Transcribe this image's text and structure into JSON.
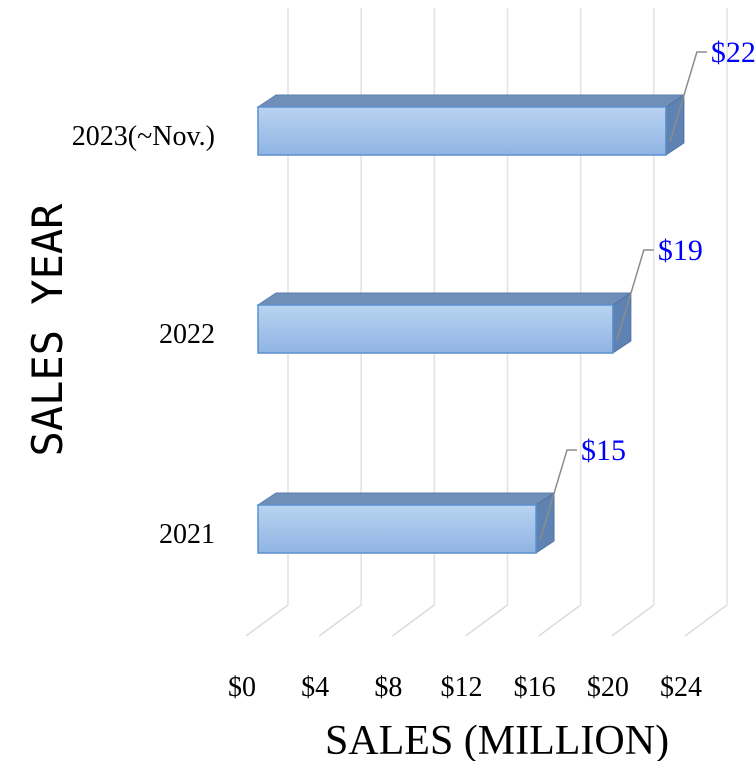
{
  "chart_data": {
    "type": "bar3d_horizontal",
    "categories": [
      "2021",
      "2022",
      "2023(~Nov.)"
    ],
    "values": [
      15.2,
      19.4,
      22.3
    ],
    "value_labels": [
      "$15",
      "$19",
      "$22"
    ],
    "xlim": [
      0,
      24
    ],
    "xticks": [
      {
        "value": 0,
        "label": "$0"
      },
      {
        "value": 4,
        "label": "$4"
      },
      {
        "value": 8,
        "label": "$8"
      },
      {
        "value": 12,
        "label": "$12"
      },
      {
        "value": 16,
        "label": "$16"
      },
      {
        "value": 20,
        "label": "$20"
      },
      {
        "value": 24,
        "label": "$24"
      }
    ],
    "xlabel": "SALES (MILLION)",
    "ylabel": "SALES YEAR",
    "color": "#9dbfe8",
    "label_color": "#0000ff",
    "grid": true
  }
}
